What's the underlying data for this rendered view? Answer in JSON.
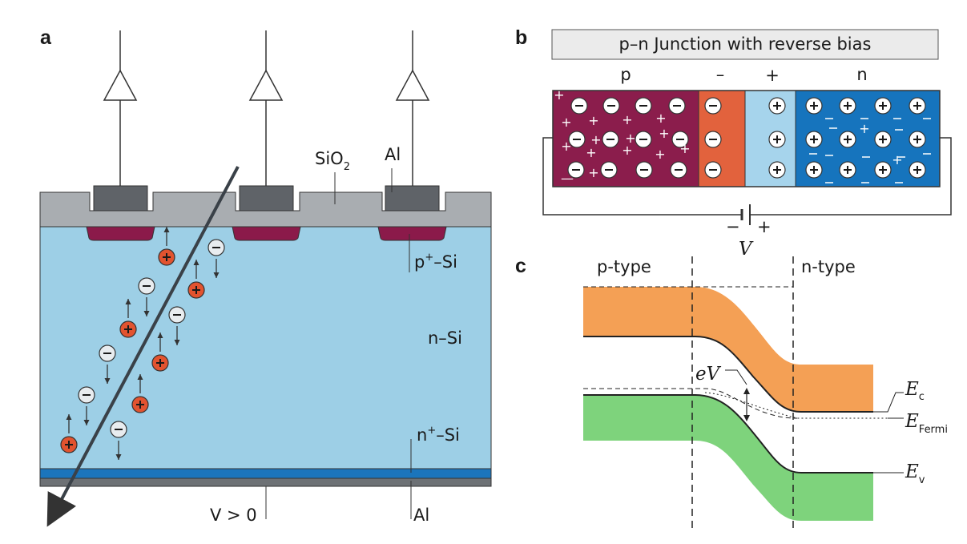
{
  "panels": {
    "a": {
      "letter": "a",
      "sio2": "SiO",
      "sio2_sub": "2",
      "al_top": "Al",
      "p_si": "p",
      "p_si_sup": "+",
      "p_si_tail": "–Si",
      "n_si": "n–Si",
      "nplus_si": "n",
      "nplus_si_sup": "+",
      "nplus_si_tail": "–Si",
      "v_label": "V > 0",
      "al_bottom": "Al",
      "charge_plus": "+",
      "charge_minus": "−"
    },
    "b": {
      "letter": "b",
      "title": "p–n Junction with reverse bias",
      "p": "p",
      "minus": "–",
      "plus": "+",
      "n": "n",
      "batt_minus": "−",
      "batt_plus": "+",
      "v": "V"
    },
    "c": {
      "letter": "c",
      "p_type": "p-type",
      "n_type": "n-type",
      "ev": "eV",
      "ec": "E",
      "ec_sub": "c",
      "efermi": "E",
      "efermi_sub": "Fermi",
      "evv": "E",
      "evv_sub": "v"
    }
  },
  "colors": {
    "oxide": "#a9adb1",
    "metal": "#5f6368",
    "p_implant": "#8b1a4a",
    "bulk": "#9dcfe6",
    "nplus": "#1b75bc",
    "hole": "#e2532f",
    "electron": "#e8ecef",
    "p_region": "#8b1d4c",
    "depl_p": "#e2623d",
    "depl_n": "#a6d4ec",
    "n_region": "#1674bd",
    "cond_band": "#f4a055",
    "val_band": "#7ed37c"
  }
}
